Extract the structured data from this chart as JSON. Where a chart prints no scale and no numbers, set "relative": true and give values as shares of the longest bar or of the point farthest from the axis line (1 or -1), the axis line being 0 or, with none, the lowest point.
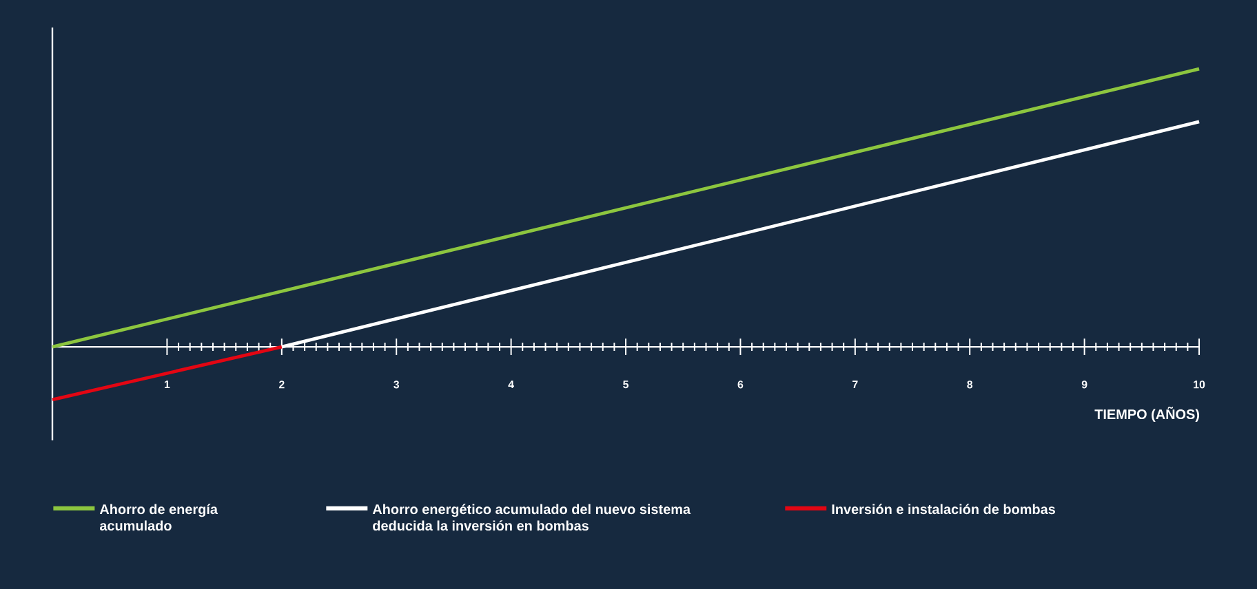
{
  "chart_data": {
    "type": "line",
    "relative": true,
    "xlabel": "TIEMPO (AÑOS)",
    "xlim": [
      0,
      10
    ],
    "xticks": [
      1,
      2,
      3,
      4,
      5,
      6,
      7,
      8,
      9,
      10
    ],
    "series": [
      {
        "name": "Ahorro de energía acumulado",
        "color": "#8dc63f",
        "x": [
          0,
          10
        ],
        "values": [
          0,
          1
        ]
      },
      {
        "name": "Ahorro energético acumulado del nuevo sistema deducida la inversión en bombas",
        "color": "#ffffff",
        "x": [
          2,
          10
        ],
        "values": [
          0,
          0.81
        ]
      },
      {
        "name": "Inversión e instalación de bombas",
        "color": "#e30613",
        "x": [
          0,
          2
        ],
        "values": [
          -0.19,
          0
        ]
      }
    ],
    "legend": "bottom",
    "grid": false,
    "marker": "none",
    "line_style": "solid"
  }
}
